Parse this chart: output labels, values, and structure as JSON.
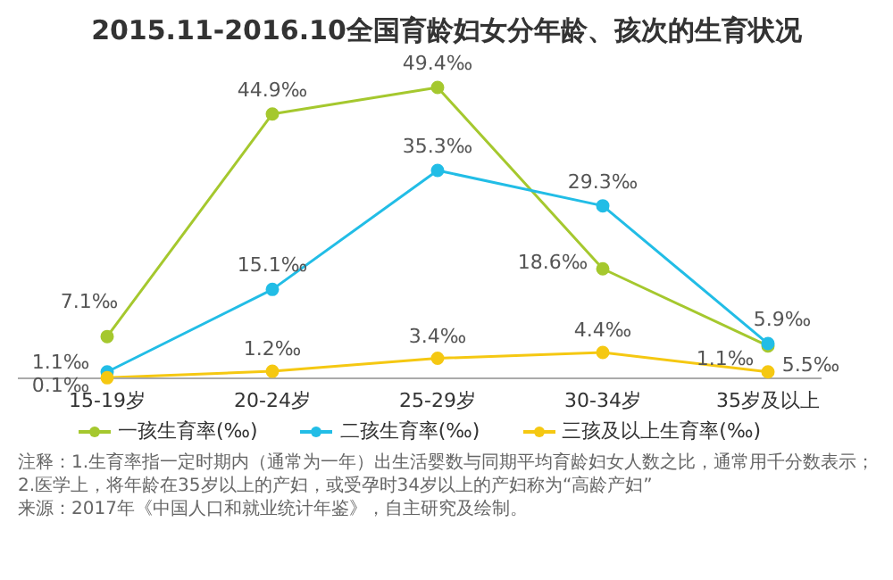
{
  "chart_data": {
    "type": "line",
    "title": "2015.11-2016.10全国育龄妇女分年龄、孩次的生育状况",
    "categories": [
      "15-19岁",
      "20-24岁",
      "25-29岁",
      "30-34岁",
      "35岁及以上"
    ],
    "series": [
      {
        "name": "一孩生育率(‰)",
        "color": "#a5c82e",
        "values": [
          7.1,
          44.9,
          49.4,
          18.6,
          5.5
        ],
        "value_labels": [
          "7.1‰",
          "44.9‰",
          "49.4‰",
          "18.6‰",
          "5.5‰"
        ]
      },
      {
        "name": "二孩生育率(‰)",
        "color": "#22bde6",
        "values": [
          1.1,
          15.1,
          35.3,
          29.3,
          5.9
        ],
        "value_labels": [
          "1.1‰",
          "15.1‰",
          "35.3‰",
          "29.3‰",
          "5.9‰"
        ]
      },
      {
        "name": "三孩及以上生育率(‰)",
        "color": "#f5c812",
        "values": [
          0.1,
          1.2,
          3.4,
          4.4,
          1.1
        ],
        "value_labels": [
          "0.1‰",
          "1.2‰",
          "3.4‰",
          "4.4‰",
          "1.1‰"
        ]
      }
    ],
    "marker": "circle",
    "line_style": "solid",
    "grid": false,
    "legend": "bottom",
    "annotations": [
      "注释：1.生育率指一定时期内（通常为一年）出生活婴数与同期平均育龄妇女人数之比，通常用千分数表示；2.医学上，将年龄在35岁以上的产妇，或受孕时34岁以上的产妇称为“高龄产妇”",
      "来源：2017年《中国人口和就业统计年鉴》，自主研究及绘制。"
    ]
  }
}
